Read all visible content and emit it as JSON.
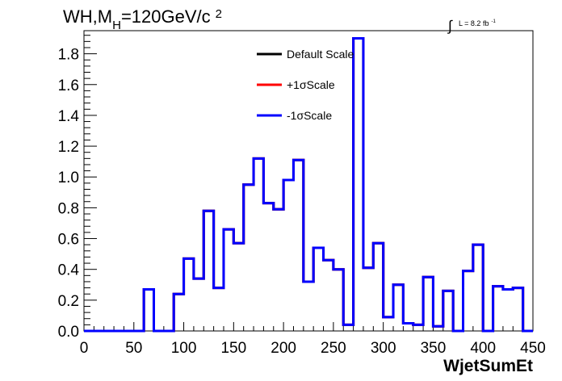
{
  "title_main": "WH,M",
  "title_sub": "H",
  "title_rest": "=120GeV/c",
  "title_sup": "2",
  "lumi_symbol": "∫",
  "lumi_text": "L = 8.2 fb",
  "lumi_sup": "-1",
  "chart_data": {
    "type": "line",
    "xlabel": "WjetSumEt",
    "ylabel": "",
    "xlim": [
      0,
      450
    ],
    "ylim": [
      0,
      1.95
    ],
    "x_ticks": [
      "0",
      "50",
      "100",
      "150",
      "200",
      "250",
      "300",
      "350",
      "400",
      "450"
    ],
    "y_ticks": [
      "0.0",
      "0.2",
      "0.4",
      "0.6",
      "0.8",
      "1.0",
      "1.2",
      "1.4",
      "1.6",
      "1.8"
    ],
    "bin_edges": [
      0,
      10,
      20,
      30,
      40,
      50,
      60,
      70,
      80,
      90,
      100,
      110,
      120,
      130,
      140,
      150,
      160,
      170,
      180,
      190,
      200,
      210,
      220,
      230,
      240,
      250,
      260,
      270,
      280,
      290,
      300,
      310,
      320,
      330,
      340,
      350,
      360,
      370,
      380,
      390,
      400,
      410,
      420,
      430,
      440,
      450
    ],
    "legend_position": "top-center",
    "series": [
      {
        "name": "Default Scale",
        "color": "#000000",
        "values": [
          0,
          0,
          0,
          0,
          0,
          0,
          0.27,
          0,
          0,
          0.24,
          0.47,
          0.34,
          0.78,
          0.28,
          0.66,
          0.57,
          0.95,
          1.12,
          0.83,
          0.79,
          0.98,
          1.11,
          0.32,
          0.54,
          0.46,
          0.4,
          0.04,
          1.9,
          0.41,
          0.57,
          0.09,
          0.3,
          0.05,
          0.04,
          0.35,
          0.03,
          0.26,
          0.0,
          0.39,
          0.56,
          0.0,
          0.29,
          0.27,
          0.28,
          0.0
        ]
      },
      {
        "name": "+1σScale",
        "color": "#ff0000",
        "values": [
          0,
          0,
          0,
          0,
          0,
          0,
          0.27,
          0,
          0,
          0.24,
          0.47,
          0.34,
          0.78,
          0.28,
          0.66,
          0.57,
          0.95,
          1.12,
          0.83,
          0.79,
          0.98,
          1.11,
          0.32,
          0.54,
          0.46,
          0.4,
          0.04,
          1.9,
          0.41,
          0.57,
          0.09,
          0.3,
          0.05,
          0.04,
          0.35,
          0.03,
          0.26,
          0.0,
          0.39,
          0.56,
          0.0,
          0.29,
          0.27,
          0.28,
          0.0
        ]
      },
      {
        "name": "-1σScale",
        "color": "#0000ff",
        "values": [
          0,
          0,
          0,
          0,
          0,
          0,
          0.27,
          0,
          0,
          0.24,
          0.47,
          0.34,
          0.78,
          0.28,
          0.66,
          0.57,
          0.95,
          1.12,
          0.83,
          0.79,
          0.98,
          1.11,
          0.32,
          0.54,
          0.46,
          0.4,
          0.04,
          1.9,
          0.41,
          0.57,
          0.09,
          0.3,
          0.05,
          0.04,
          0.35,
          0.03,
          0.26,
          0.0,
          0.39,
          0.56,
          0.0,
          0.29,
          0.27,
          0.28,
          0.0
        ]
      }
    ]
  }
}
